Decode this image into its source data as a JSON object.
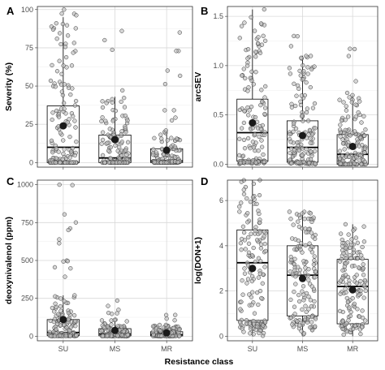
{
  "chart_data": [
    {
      "panel": "A",
      "type": "box",
      "xlabel": "",
      "ylabel": "Severity (%)",
      "categories": [
        "SU",
        "MS",
        "MR"
      ],
      "ylim": [
        -3,
        102
      ],
      "yticks": [
        0,
        25,
        50,
        75,
        100
      ],
      "ytick_labels": [
        "0",
        "25",
        "50",
        "75",
        "100"
      ],
      "show_x_tick_labels": false,
      "series": [
        {
          "category": "SU",
          "whisker_low": 0,
          "q1": 0,
          "median": 10,
          "q3": 37,
          "whisker_high": 95,
          "mean": 24,
          "max_point": 100
        },
        {
          "category": "MS",
          "whisker_low": 0,
          "q1": 0,
          "median": 3,
          "q3": 18,
          "whisker_high": 43,
          "mean": 15,
          "max_point": 86
        },
        {
          "category": "MR",
          "whisker_low": 0,
          "q1": 0,
          "median": 1,
          "q3": 9,
          "whisker_high": 21,
          "mean": 8,
          "max_point": 85
        }
      ],
      "grid": true
    },
    {
      "panel": "B",
      "type": "box",
      "xlabel": "",
      "ylabel": "arcSEV",
      "categories": [
        "SU",
        "MS",
        "MR"
      ],
      "ylim": [
        -0.03,
        1.6
      ],
      "yticks": [
        0,
        0.5,
        1.0,
        1.5
      ],
      "ytick_labels": [
        "0.0",
        "0.5",
        "1.0",
        "1.5"
      ],
      "show_x_tick_labels": false,
      "series": [
        {
          "category": "SU",
          "whisker_low": 0,
          "q1": 0.03,
          "median": 0.32,
          "q3": 0.66,
          "whisker_high": 1.57,
          "mean": 0.42,
          "max_point": 1.57
        },
        {
          "category": "MS",
          "whisker_low": 0,
          "q1": 0.02,
          "median": 0.17,
          "q3": 0.44,
          "whisker_high": 1.1,
          "mean": 0.29,
          "max_point": 1.3
        },
        {
          "category": "MR",
          "whisker_low": 0,
          "q1": 0.0,
          "median": 0.1,
          "q3": 0.3,
          "whisker_high": 0.7,
          "mean": 0.18,
          "max_point": 1.17
        }
      ],
      "grid": true
    },
    {
      "panel": "C",
      "type": "box",
      "xlabel": "",
      "ylabel": "deoxynivalenol (ppm)",
      "categories": [
        "SU",
        "MS",
        "MR"
      ],
      "ylim": [
        -30,
        1030
      ],
      "yticks": [
        0,
        250,
        500,
        750,
        1000
      ],
      "ytick_labels": [
        "0",
        "250",
        "500",
        "750",
        "1000"
      ],
      "show_x_tick_labels": true,
      "series": [
        {
          "category": "SU",
          "whisker_low": 0,
          "q1": 5,
          "median": 25,
          "q3": 110,
          "whisker_high": 270,
          "mean": 110,
          "max_point": 1000
        },
        {
          "category": "MS",
          "whisker_low": 0,
          "q1": 3,
          "median": 15,
          "q3": 50,
          "whisker_high": 110,
          "mean": 38,
          "max_point": 235
        },
        {
          "category": "MR",
          "whisker_low": 0,
          "q1": 2,
          "median": 10,
          "q3": 30,
          "whisker_high": 70,
          "mean": 22,
          "max_point": 140
        }
      ],
      "grid": true
    },
    {
      "panel": "D",
      "type": "box",
      "xlabel": "",
      "ylabel": "log(DON+1)",
      "categories": [
        "SU",
        "MS",
        "MR"
      ],
      "ylim": [
        -0.2,
        6.9
      ],
      "yticks": [
        0,
        2,
        4,
        6
      ],
      "ytick_labels": [
        "0",
        "2",
        "4",
        "6"
      ],
      "show_x_tick_labels": true,
      "series": [
        {
          "category": "SU",
          "whisker_low": 0,
          "q1": 0.7,
          "median": 3.25,
          "q3": 4.7,
          "whisker_high": 6.9,
          "mean": 3.0,
          "max_point": 6.9
        },
        {
          "category": "MS",
          "whisker_low": 0,
          "q1": 0.9,
          "median": 2.7,
          "q3": 4.0,
          "whisker_high": 5.5,
          "mean": 2.55,
          "max_point": 5.5
        },
        {
          "category": "MR",
          "whisker_low": 0,
          "q1": 0.55,
          "median": 2.2,
          "q3": 3.4,
          "whisker_high": 4.95,
          "mean": 2.05,
          "max_point": 4.95
        }
      ],
      "grid": true
    }
  ],
  "shared_xlabel": "Resistance class"
}
